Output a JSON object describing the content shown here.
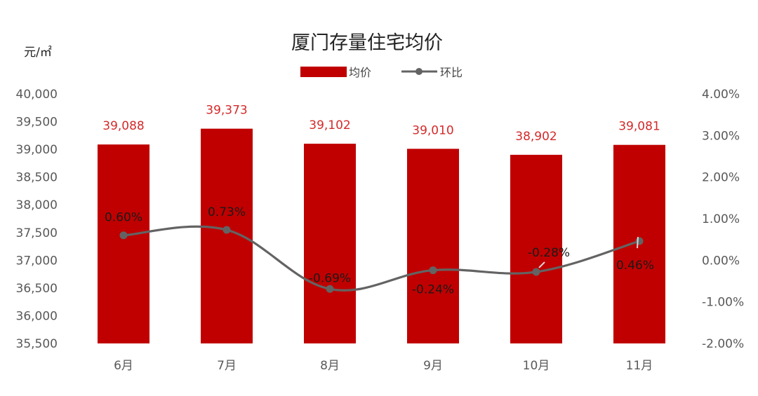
{
  "chart_data": {
    "type": "bar",
    "title": "厦门存量住宅均价",
    "left_unit": "元/㎡",
    "categories": [
      "6月",
      "7月",
      "8月",
      "9月",
      "10月",
      "11月"
    ],
    "series": [
      {
        "name": "均价",
        "type": "bar",
        "axis": "left",
        "values": [
          39088,
          39373,
          39102,
          39010,
          38902,
          39081
        ],
        "labels": [
          "39,088",
          "39,373",
          "39,102",
          "39,010",
          "38,902",
          "39,081"
        ]
      },
      {
        "name": "环比",
        "type": "line",
        "axis": "right",
        "values": [
          0.6,
          0.73,
          -0.69,
          -0.24,
          -0.28,
          0.46
        ],
        "labels": [
          "0.60%",
          "0.73%",
          "-0.69%",
          "-0.24%",
          "-0.28%",
          "0.46%"
        ]
      }
    ],
    "y_left": {
      "min": 35500,
      "max": 40000,
      "ticks": [
        "35,500",
        "36,000",
        "36,500",
        "37,000",
        "37,500",
        "38,000",
        "38,500",
        "39,000",
        "39,500",
        "40,000"
      ]
    },
    "y_right": {
      "min": -2.0,
      "max": 4.0,
      "ticks": [
        "-2.00%",
        "-1.00%",
        "0.00%",
        "1.00%",
        "2.00%",
        "3.00%",
        "4.00%"
      ]
    },
    "legend_position": "top-center",
    "grid": false,
    "colors": {
      "bar": "#C00000",
      "bar_label": "#D42A2A",
      "line": "#636363",
      "line_label": "#1a1a1a",
      "tick": "#595959"
    }
  }
}
